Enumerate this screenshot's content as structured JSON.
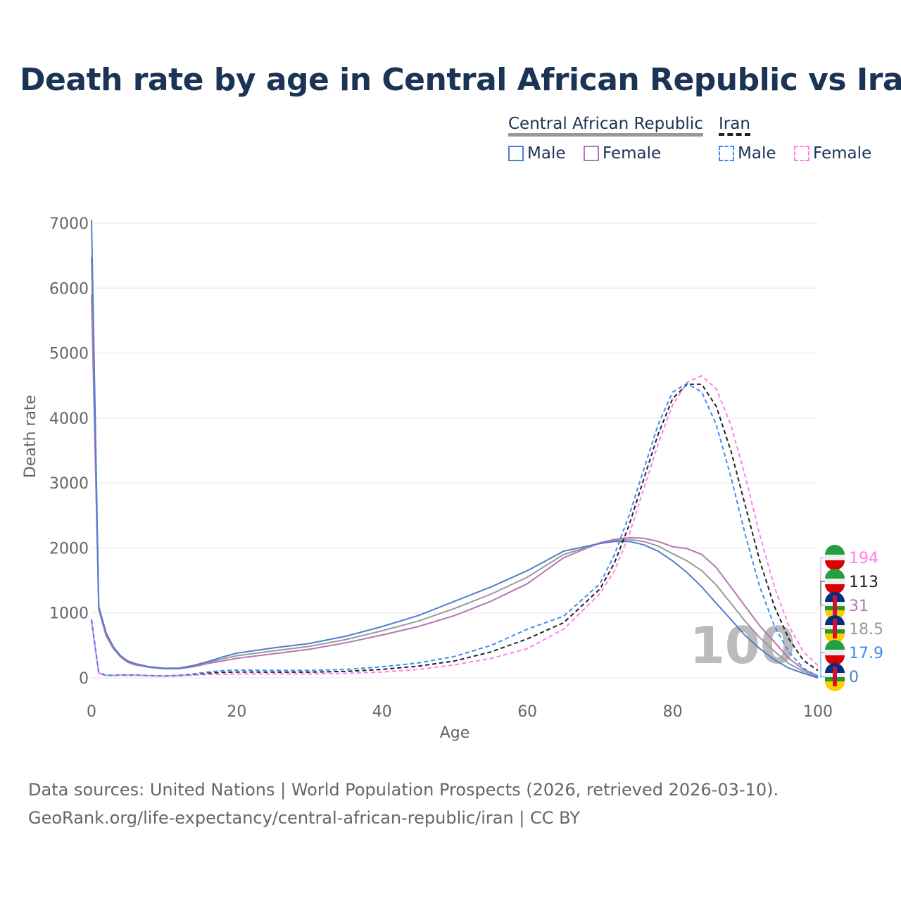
{
  "title": "Death rate by age in Central African Republic vs Iran",
  "legend": {
    "car": "Central African Republic",
    "iran": "Iran",
    "male": "Male",
    "female": "Female"
  },
  "colors": {
    "car_male": "#4f7fcf",
    "car_female": "#b377b3",
    "car_total": "#999999",
    "iran_male": "#3d8cf5",
    "iran_female": "#ff80ee",
    "iran_total": "#222222"
  },
  "sources": [
    "Data sources: United Nations | World Population Prospects (2026, retrieved 2026-03-10).",
    "GeoRank.org/life-expectancy/central-african-republic/iran | CC BY"
  ],
  "chart_data": {
    "type": "line",
    "xlabel": "Age",
    "ylabel": "Death rate",
    "xlim": [
      0,
      100
    ],
    "ylim": [
      0,
      7000
    ],
    "xticks": [
      0,
      20,
      40,
      60,
      80,
      100
    ],
    "yticks": [
      0,
      1000,
      2000,
      3000,
      4000,
      5000,
      6000,
      7000
    ],
    "watermark": "100",
    "x": [
      0,
      1,
      2,
      3,
      4,
      5,
      6,
      8,
      10,
      12,
      14,
      16,
      18,
      20,
      25,
      30,
      35,
      40,
      45,
      50,
      55,
      60,
      65,
      70,
      72,
      74,
      76,
      78,
      80,
      82,
      84,
      86,
      88,
      90,
      92,
      94,
      96,
      98,
      100
    ],
    "series": [
      {
        "name": "Central African Republic Male",
        "key": "car_male",
        "dash": false,
        "end_label": "0",
        "values": [
          7050,
          1100,
          700,
          480,
          340,
          260,
          220,
          170,
          150,
          150,
          190,
          250,
          320,
          380,
          460,
          530,
          640,
          790,
          960,
          1180,
          1400,
          1650,
          1950,
          2070,
          2100,
          2100,
          2050,
          1950,
          1800,
          1620,
          1400,
          1150,
          900,
          650,
          450,
          280,
          150,
          70,
          0
        ]
      },
      {
        "name": "Central African Republic Female",
        "key": "car_female",
        "dash": false,
        "end_label": "31",
        "values": [
          5900,
          1050,
          650,
          450,
          320,
          240,
          200,
          160,
          140,
          140,
          170,
          220,
          260,
          300,
          370,
          440,
          540,
          660,
          790,
          960,
          1180,
          1450,
          1850,
          2080,
          2130,
          2160,
          2150,
          2100,
          2020,
          1990,
          1900,
          1700,
          1400,
          1100,
          800,
          550,
          300,
          130,
          31
        ]
      },
      {
        "name": "Central African Republic",
        "key": "car_total",
        "dash": false,
        "end_label": "18.5",
        "values": [
          6480,
          1080,
          680,
          465,
          330,
          250,
          210,
          165,
          145,
          145,
          180,
          235,
          290,
          340,
          415,
          485,
          590,
          725,
          875,
          1070,
          1290,
          1550,
          1900,
          2070,
          2110,
          2130,
          2100,
          2030,
          1910,
          1800,
          1650,
          1430,
          1150,
          870,
          620,
          410,
          220,
          100,
          18.5
        ]
      },
      {
        "name": "Iran Male",
        "key": "iran_male",
        "dash": true,
        "end_label": "17.9",
        "values": [
          900,
          80,
          40,
          40,
          45,
          45,
          45,
          35,
          30,
          40,
          60,
          90,
          110,
          120,
          115,
          115,
          130,
          170,
          230,
          330,
          500,
          750,
          950,
          1450,
          1900,
          2500,
          3200,
          3900,
          4400,
          4530,
          4400,
          3900,
          3100,
          2200,
          1400,
          800,
          400,
          150,
          17.9
        ]
      },
      {
        "name": "Iran Female",
        "key": "iran_female",
        "dash": true,
        "end_label": "194",
        "values": [
          850,
          70,
          35,
          35,
          40,
          40,
          40,
          30,
          25,
          30,
          40,
          50,
          55,
          60,
          60,
          60,
          70,
          90,
          130,
          200,
          300,
          450,
          750,
          1300,
          1650,
          2200,
          2900,
          3600,
          4200,
          4550,
          4650,
          4450,
          3900,
          3100,
          2200,
          1400,
          800,
          400,
          194
        ]
      },
      {
        "name": "Iran",
        "key": "iran_total",
        "dash": true,
        "end_label": "113",
        "values": [
          880,
          75,
          38,
          38,
          42,
          42,
          42,
          32,
          28,
          35,
          50,
          70,
          85,
          90,
          88,
          88,
          100,
          130,
          180,
          260,
          400,
          600,
          850,
          1370,
          1770,
          2350,
          3050,
          3750,
          4300,
          4520,
          4520,
          4180,
          3500,
          2650,
          1800,
          1100,
          600,
          270,
          113
        ]
      }
    ]
  }
}
